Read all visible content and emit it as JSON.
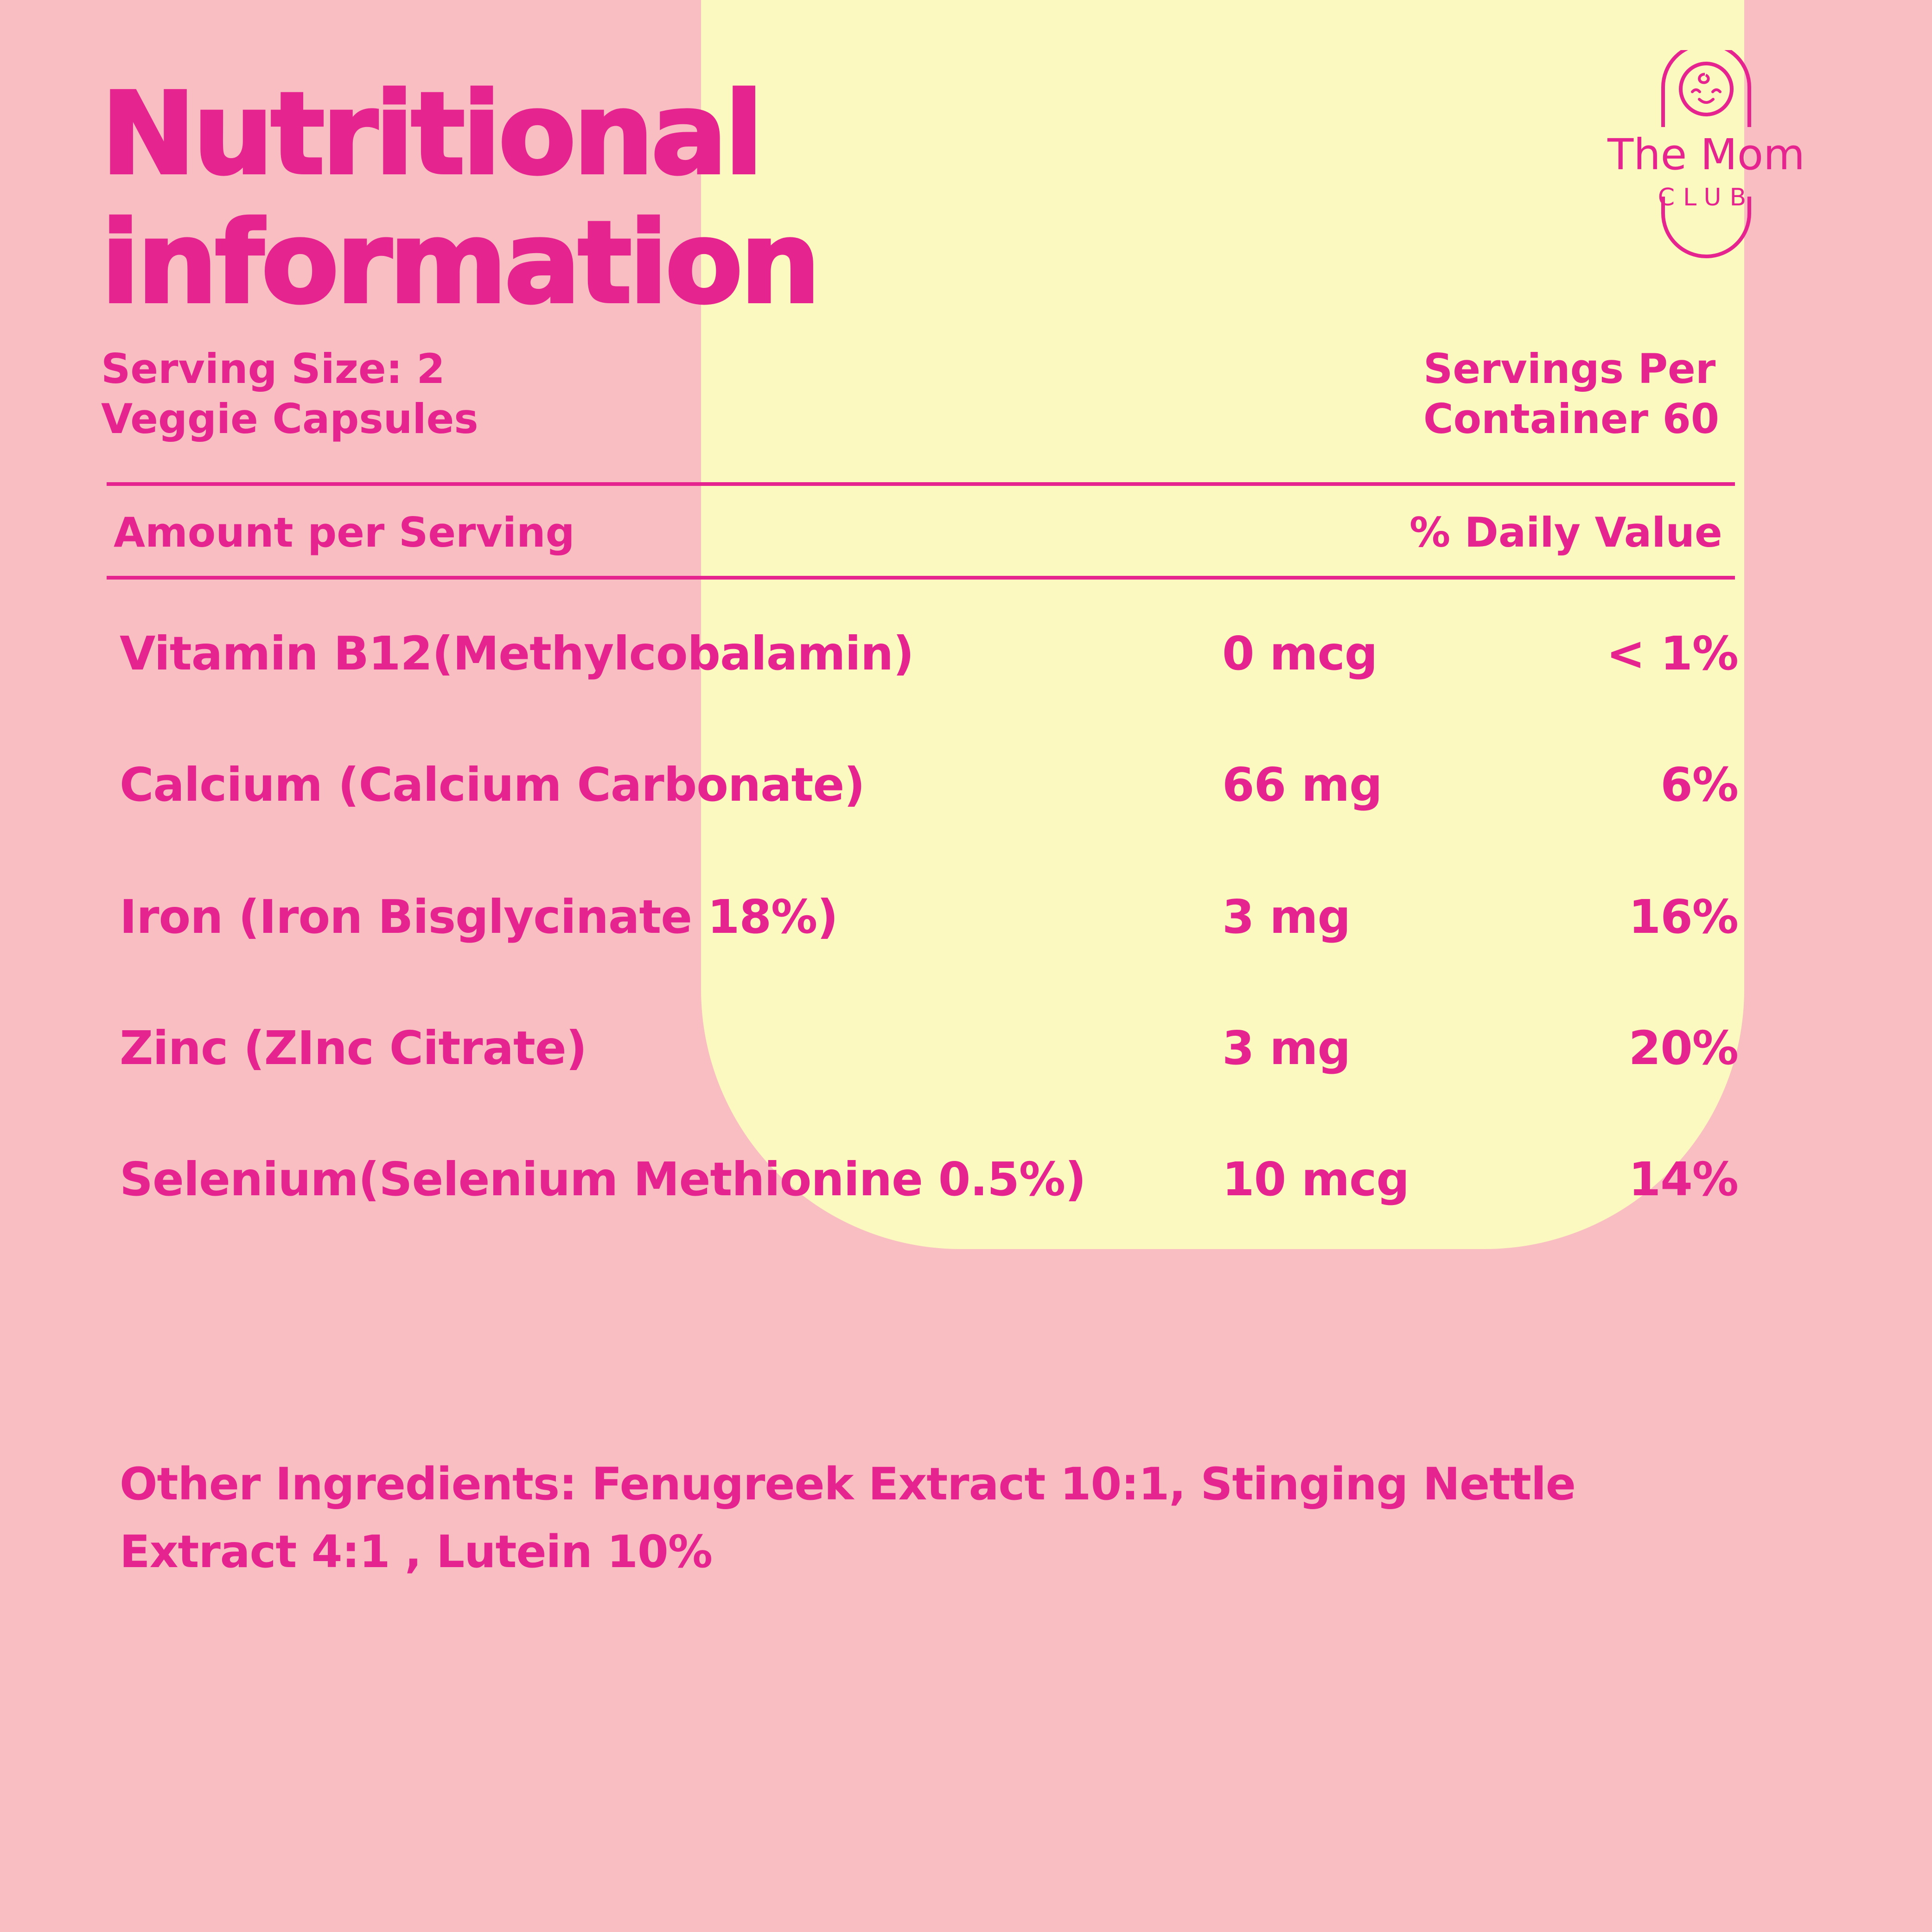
{
  "title": {
    "line1": "Nutritional",
    "line2": "information"
  },
  "brand": {
    "name": "The Mom",
    "sub": "CLUB",
    "icon": "baby-face-capsule-icon"
  },
  "serving": {
    "size_line1": "Serving Size: 2",
    "size_line2": "Veggie Capsules",
    "per_line1": "Servings Per",
    "per_line2": "Container 60"
  },
  "table": {
    "amount_header": "Amount per Serving",
    "dv_header": "% Daily Value",
    "rows": [
      {
        "name": "Vitamin B12(Methylcobalamin)",
        "amount": "0 mcg",
        "dv": "< 1%"
      },
      {
        "name": "Calcium (Calcium Carbonate)",
        "amount": "66 mg",
        "dv": "6%"
      },
      {
        "name": "Iron (Iron Bisglycinate 18%)",
        "amount": "3 mg",
        "dv": "16%"
      },
      {
        "name": "Zinc (ZInc Citrate)",
        "amount": "3 mg",
        "dv": "20%"
      },
      {
        "name": "Selenium(Selenium Methionine 0.5%)",
        "amount": "10 mcg",
        "dv": "14%"
      }
    ]
  },
  "ingredients": {
    "line1": "Other Ingredients: Fenugreek Extract 10:1, Stinging Nettle",
    "line2": "Extract 4:1 , Lutein 10%"
  },
  "colors": {
    "background": "#f8bec1",
    "panel": "#fbf9c0",
    "accent": "#e5248f"
  }
}
